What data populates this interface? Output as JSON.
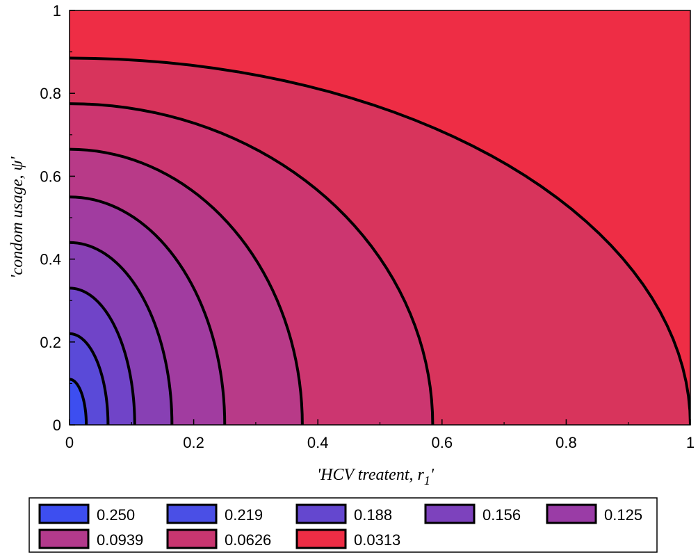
{
  "chart_data": {
    "type": "contour",
    "xlabel": "'HCV treatent, r",
    "xlabel_subscript": "1",
    "xlabel_suffix": "'",
    "ylabel": "'condom usage, ψ'",
    "xlim": [
      0,
      1
    ],
    "ylim": [
      0,
      1
    ],
    "x_ticks": [
      "0",
      "0.2",
      "0.4",
      "0.6",
      "0.8",
      "1"
    ],
    "y_ticks": [
      "0",
      "0.2",
      "0.4",
      "0.6",
      "0.8",
      "1"
    ],
    "grid": false,
    "legend_position": "bottom",
    "levels": [
      {
        "value": "0.250",
        "color": "#3d4ef0",
        "x_intercept": 0.0,
        "y_intercept": 0.0
      },
      {
        "value": "0.219",
        "color": "#4a4fe6",
        "x_intercept": 0.027,
        "y_intercept": 0.11
      },
      {
        "value": "0.188",
        "color": "#6447cf",
        "x_intercept": 0.062,
        "y_intercept": 0.22
      },
      {
        "value": "0.156",
        "color": "#7d42bd",
        "x_intercept": 0.105,
        "y_intercept": 0.33
      },
      {
        "value": "0.125",
        "color": "#9a3ca6",
        "x_intercept": 0.165,
        "y_intercept": 0.44
      },
      {
        "value": "0.0939",
        "color": "#b33a8c",
        "x_intercept": 0.25,
        "y_intercept": 0.55
      },
      {
        "value": "0.0626",
        "color": "#c93670",
        "x_intercept": 0.375,
        "y_intercept": 0.66
      },
      {
        "value": "0.0313",
        "color": "#ee2d45",
        "x_intercept": 0.58,
        "y_intercept": 0.775
      }
    ],
    "contour_lines": [
      {
        "x_intercept": 0.027,
        "y_intercept": 0.11
      },
      {
        "x_intercept": 0.062,
        "y_intercept": 0.22
      },
      {
        "x_intercept": 0.105,
        "y_intercept": 0.33
      },
      {
        "x_intercept": 0.165,
        "y_intercept": 0.44
      },
      {
        "x_intercept": 0.25,
        "y_intercept": 0.55
      },
      {
        "x_intercept": 0.375,
        "y_intercept": 0.665
      },
      {
        "x_intercept": 0.585,
        "y_intercept": 0.775
      },
      {
        "x_intercept": 1.0,
        "y_intercept": 0.885
      }
    ],
    "region_colors": [
      "#3d4ef0",
      "#5a4ad8",
      "#7044c8",
      "#8840b4",
      "#a13ca0",
      "#b83a88",
      "#cc3670",
      "#d8345c",
      "#ee2d45"
    ]
  }
}
